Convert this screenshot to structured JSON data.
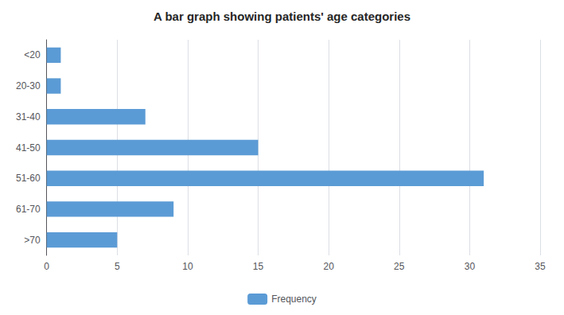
{
  "chart_data": {
    "type": "bar",
    "title": "A bar graph showing patients' age categories",
    "categories": [
      "<20",
      "20-30",
      "31-40",
      "41-50",
      "51-60",
      "61-70",
      ">70"
    ],
    "series": [
      {
        "name": "Frequency",
        "color": "#5b9bd5",
        "values": [
          1,
          1,
          7,
          15,
          31,
          9,
          5
        ]
      }
    ],
    "orientation": "horizontal",
    "xlim": [
      0,
      35
    ],
    "xticks": [
      0,
      5,
      10,
      15,
      20,
      25,
      30,
      35
    ],
    "grid": true,
    "legend": "bottom"
  }
}
